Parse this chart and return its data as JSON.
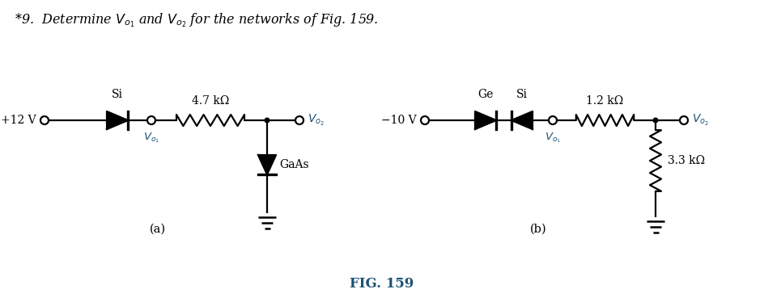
{
  "title_text": "*9.  Determine $V_{o_1}$ and $V_{o_2}$ for the networks of Fig. 159.",
  "fig_label": "FIG. 159",
  "bg_color": "#ffffff",
  "text_color": "#000000",
  "blue_color": "#1a5276",
  "fig_label_color": "#1a5276",
  "circuit_a": {
    "label": "(a)",
    "source_label": "+12 V",
    "diode_label": "Si",
    "resistor_label": "4.7 kΩ",
    "diode2_label": "GaAs",
    "vo1_label": "$V_{o_1}$",
    "vo2_label": "$V_{o_2}$"
  },
  "circuit_b": {
    "label": "(b)",
    "source_label": "−10 V",
    "diode1_label": "Ge",
    "diode2_label": "Si",
    "resistor_label": "1.2 kΩ",
    "resistor2_label": "3.3 kΩ",
    "vo1_label": "$V_{o_1}$",
    "vo2_label": "$V_{o_2}$"
  }
}
